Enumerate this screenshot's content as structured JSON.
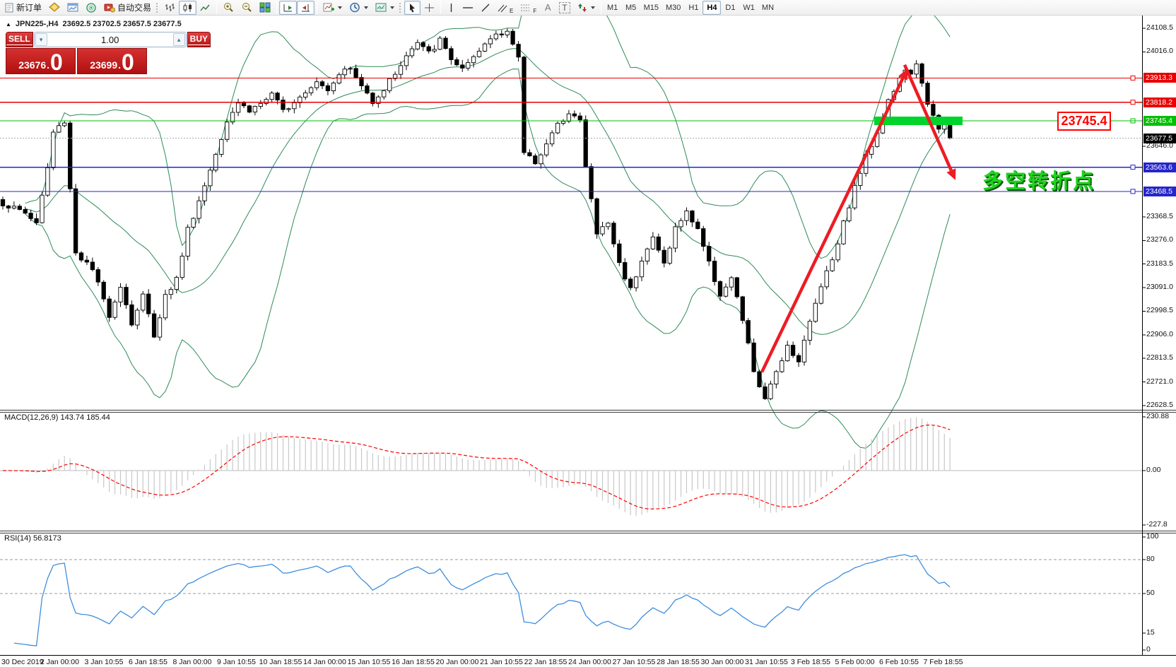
{
  "icons": {
    "collapse": "▲",
    "spinner_up": "▴",
    "spinner_down": "▾"
  },
  "toolbar": {
    "new_order": "新订单",
    "auto_trading": "自动交易",
    "text_tool": "A",
    "label_tool": "T",
    "channel_sub": "E",
    "fibo_sub": "F",
    "timeframes": [
      "M1",
      "M5",
      "M15",
      "M30",
      "H1",
      "H4",
      "D1",
      "W1",
      "MN"
    ],
    "active_timeframe": "H4"
  },
  "chart": {
    "title": "JPN225-,H4",
    "ohlc": "23692.5 23702.5 23657.5 23677.5",
    "trade_panel": {
      "sell": "SELL",
      "buy": "BUY",
      "volume": "1.00",
      "sell_price": "23676",
      "sell_price_big": "0",
      "buy_price": "23699",
      "buy_price_big": "0"
    }
  },
  "chart_data": {
    "type": "candlestick",
    "symbol": "JPN225-",
    "timeframe": "H4",
    "ohlc_display": {
      "open": 23692.5,
      "high": 23702.5,
      "low": 23657.5,
      "close": 23677.5
    },
    "current_price": 23677.5,
    "price_axis_visible_ticks": [
      24108.5,
      24016.0,
      23646.0,
      23368.5,
      23276.0,
      23183.5,
      23091.0,
      22998.5,
      22906.0,
      22813.5,
      22721.0,
      22628.5
    ],
    "levels": [
      {
        "value": "23913.3",
        "price": 23913.3,
        "color": "#e80000"
      },
      {
        "value": "23818.2",
        "price": 23818.2,
        "color": "#e80000"
      },
      {
        "value": "23745.4",
        "price": 23745.4,
        "color": "#00c000"
      },
      {
        "value": "23563.6",
        "price": 23563.6,
        "color": "#2525cc"
      },
      {
        "value": "23468.5",
        "price": 23468.5,
        "color": "#2525cc"
      }
    ],
    "current_price_badge": {
      "value": "23677.5",
      "color": "#000000"
    },
    "candle_count": 170,
    "price_path_anchors": [
      [
        0,
        23420
      ],
      [
        4,
        23385
      ],
      [
        6,
        23345
      ],
      [
        8,
        23560
      ],
      [
        9,
        23700
      ],
      [
        11,
        23745
      ],
      [
        12,
        23480
      ],
      [
        13,
        23230
      ],
      [
        16,
        23160
      ],
      [
        19,
        22985
      ],
      [
        21,
        23100
      ],
      [
        23,
        22950
      ],
      [
        25,
        23060
      ],
      [
        27,
        22905
      ],
      [
        29,
        23060
      ],
      [
        31,
        23125
      ],
      [
        33,
        23320
      ],
      [
        35,
        23430
      ],
      [
        37,
        23555
      ],
      [
        40,
        23750
      ],
      [
        42,
        23820
      ],
      [
        44,
        23785
      ],
      [
        46,
        23815
      ],
      [
        48,
        23845
      ],
      [
        50,
        23785
      ],
      [
        52,
        23825
      ],
      [
        54,
        23865
      ],
      [
        56,
        23905
      ],
      [
        58,
        23870
      ],
      [
        60,
        23935
      ],
      [
        62,
        23950
      ],
      [
        64,
        23880
      ],
      [
        66,
        23825
      ],
      [
        68,
        23870
      ],
      [
        70,
        23935
      ],
      [
        72,
        24000
      ],
      [
        74,
        24050
      ],
      [
        76,
        24010
      ],
      [
        78,
        24060
      ],
      [
        80,
        23990
      ],
      [
        82,
        23945
      ],
      [
        84,
        23985
      ],
      [
        86,
        24045
      ],
      [
        88,
        24090
      ],
      [
        90,
        24100
      ],
      [
        92,
        23985
      ],
      [
        93,
        23625
      ],
      [
        95,
        23585
      ],
      [
        97,
        23655
      ],
      [
        99,
        23725
      ],
      [
        101,
        23785
      ],
      [
        103,
        23745
      ],
      [
        104,
        23565
      ],
      [
        106,
        23305
      ],
      [
        108,
        23345
      ],
      [
        110,
        23185
      ],
      [
        112,
        23085
      ],
      [
        114,
        23205
      ],
      [
        116,
        23285
      ],
      [
        118,
        23185
      ],
      [
        120,
        23325
      ],
      [
        122,
        23385
      ],
      [
        124,
        23325
      ],
      [
        126,
        23185
      ],
      [
        128,
        23065
      ],
      [
        130,
        23125
      ],
      [
        132,
        22965
      ],
      [
        134,
        22765
      ],
      [
        136,
        22645
      ],
      [
        138,
        22765
      ],
      [
        140,
        22865
      ],
      [
        142,
        22805
      ],
      [
        144,
        22955
      ],
      [
        146,
        23105
      ],
      [
        148,
        23205
      ],
      [
        150,
        23345
      ],
      [
        152,
        23485
      ],
      [
        154,
        23605
      ],
      [
        156,
        23705
      ],
      [
        158,
        23825
      ],
      [
        160,
        23905
      ],
      [
        161,
        23950
      ],
      [
        162,
        23920
      ],
      [
        163,
        23960
      ],
      [
        164,
        23900
      ],
      [
        165,
        23820
      ],
      [
        166,
        23760
      ],
      [
        167,
        23705
      ],
      [
        168,
        23725
      ],
      [
        169,
        23677.5
      ]
    ],
    "time_axis_labels": [
      "30 Dec 2019",
      "2 Jan 00:00",
      "3 Jan 10:55",
      "6 Jan 18:55",
      "8 Jan 00:00",
      "9 Jan 10:55",
      "10 Jan 18:55",
      "14 Jan 00:00",
      "15 Jan 10:55",
      "16 Jan 18:55",
      "20 Jan 00:00",
      "21 Jan 10:55",
      "22 Jan 18:55",
      "24 Jan 00:00",
      "27 Jan 10:55",
      "28 Jan 18:55",
      "30 Jan 00:00",
      "31 Jan 10:55",
      "3 Feb 18:55",
      "5 Feb 00:00",
      "6 Feb 10:55",
      "7 Feb 18:55"
    ],
    "annotations": {
      "price_label_box": "23745.4",
      "cn_text": "多空转折点",
      "green_bar": {
        "price": 23745.4,
        "color": "#00d42a"
      },
      "up_arrow": {
        "from_price": 22760,
        "to_price": 23950,
        "color": "#ed1c24"
      },
      "down_arrow": {
        "from_price": 23965,
        "to_price": 23560,
        "color": "#ed1c24"
      }
    },
    "indicators": {
      "bollinger": {
        "period": 20,
        "color": "#2e8b57"
      },
      "macd": {
        "label": "MACD(12,26,9)",
        "value": "143.74",
        "signal_value": "185.44",
        "axis_ticks": [
          "230.88",
          "0.00",
          "-227.8"
        ],
        "histogram_color": "#c8c8c8",
        "signal_color": "#ff0000"
      },
      "rsi": {
        "label": "RSI(14)",
        "value": "56.8173",
        "axis_ticks": [
          "100",
          "80",
          "50",
          "15",
          "0"
        ],
        "dashed_levels": [
          80,
          50
        ],
        "line_color": "#3e8ede"
      }
    }
  }
}
